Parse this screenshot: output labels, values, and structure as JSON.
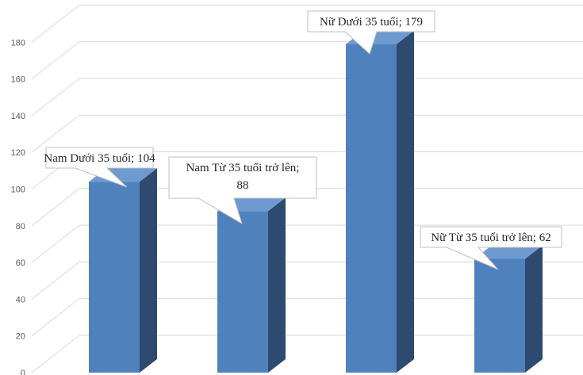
{
  "chart_data": {
    "type": "bar",
    "style": "3d-column",
    "categories": [
      "Nam Dưới 35 tuổi",
      "Nam Từ 35 tuổi trở lên",
      "Nữ Dưới 35 tuổi",
      "Nữ Từ 35 tuổi trở lên"
    ],
    "values": [
      104,
      88,
      179,
      62
    ],
    "data_labels": [
      [
        "Nam Dưới 35 tuổi; 104"
      ],
      [
        "Nam Từ 35 tuổi trở lên;",
        "88"
      ],
      [
        "Nữ Dưới 35 tuổi; 179"
      ],
      [
        "Nữ Từ 35 tuổi trở lên; 62"
      ]
    ],
    "ylim": [
      0,
      180
    ],
    "yticks": [
      0,
      20,
      40,
      60,
      80,
      100,
      120,
      140,
      160,
      180
    ],
    "grid": true,
    "legend": "none",
    "colors": {
      "front": "#4f81bd",
      "side": "#2e4a6f",
      "top": "#6f9ad0",
      "grid": "#d9d9d9"
    }
  }
}
